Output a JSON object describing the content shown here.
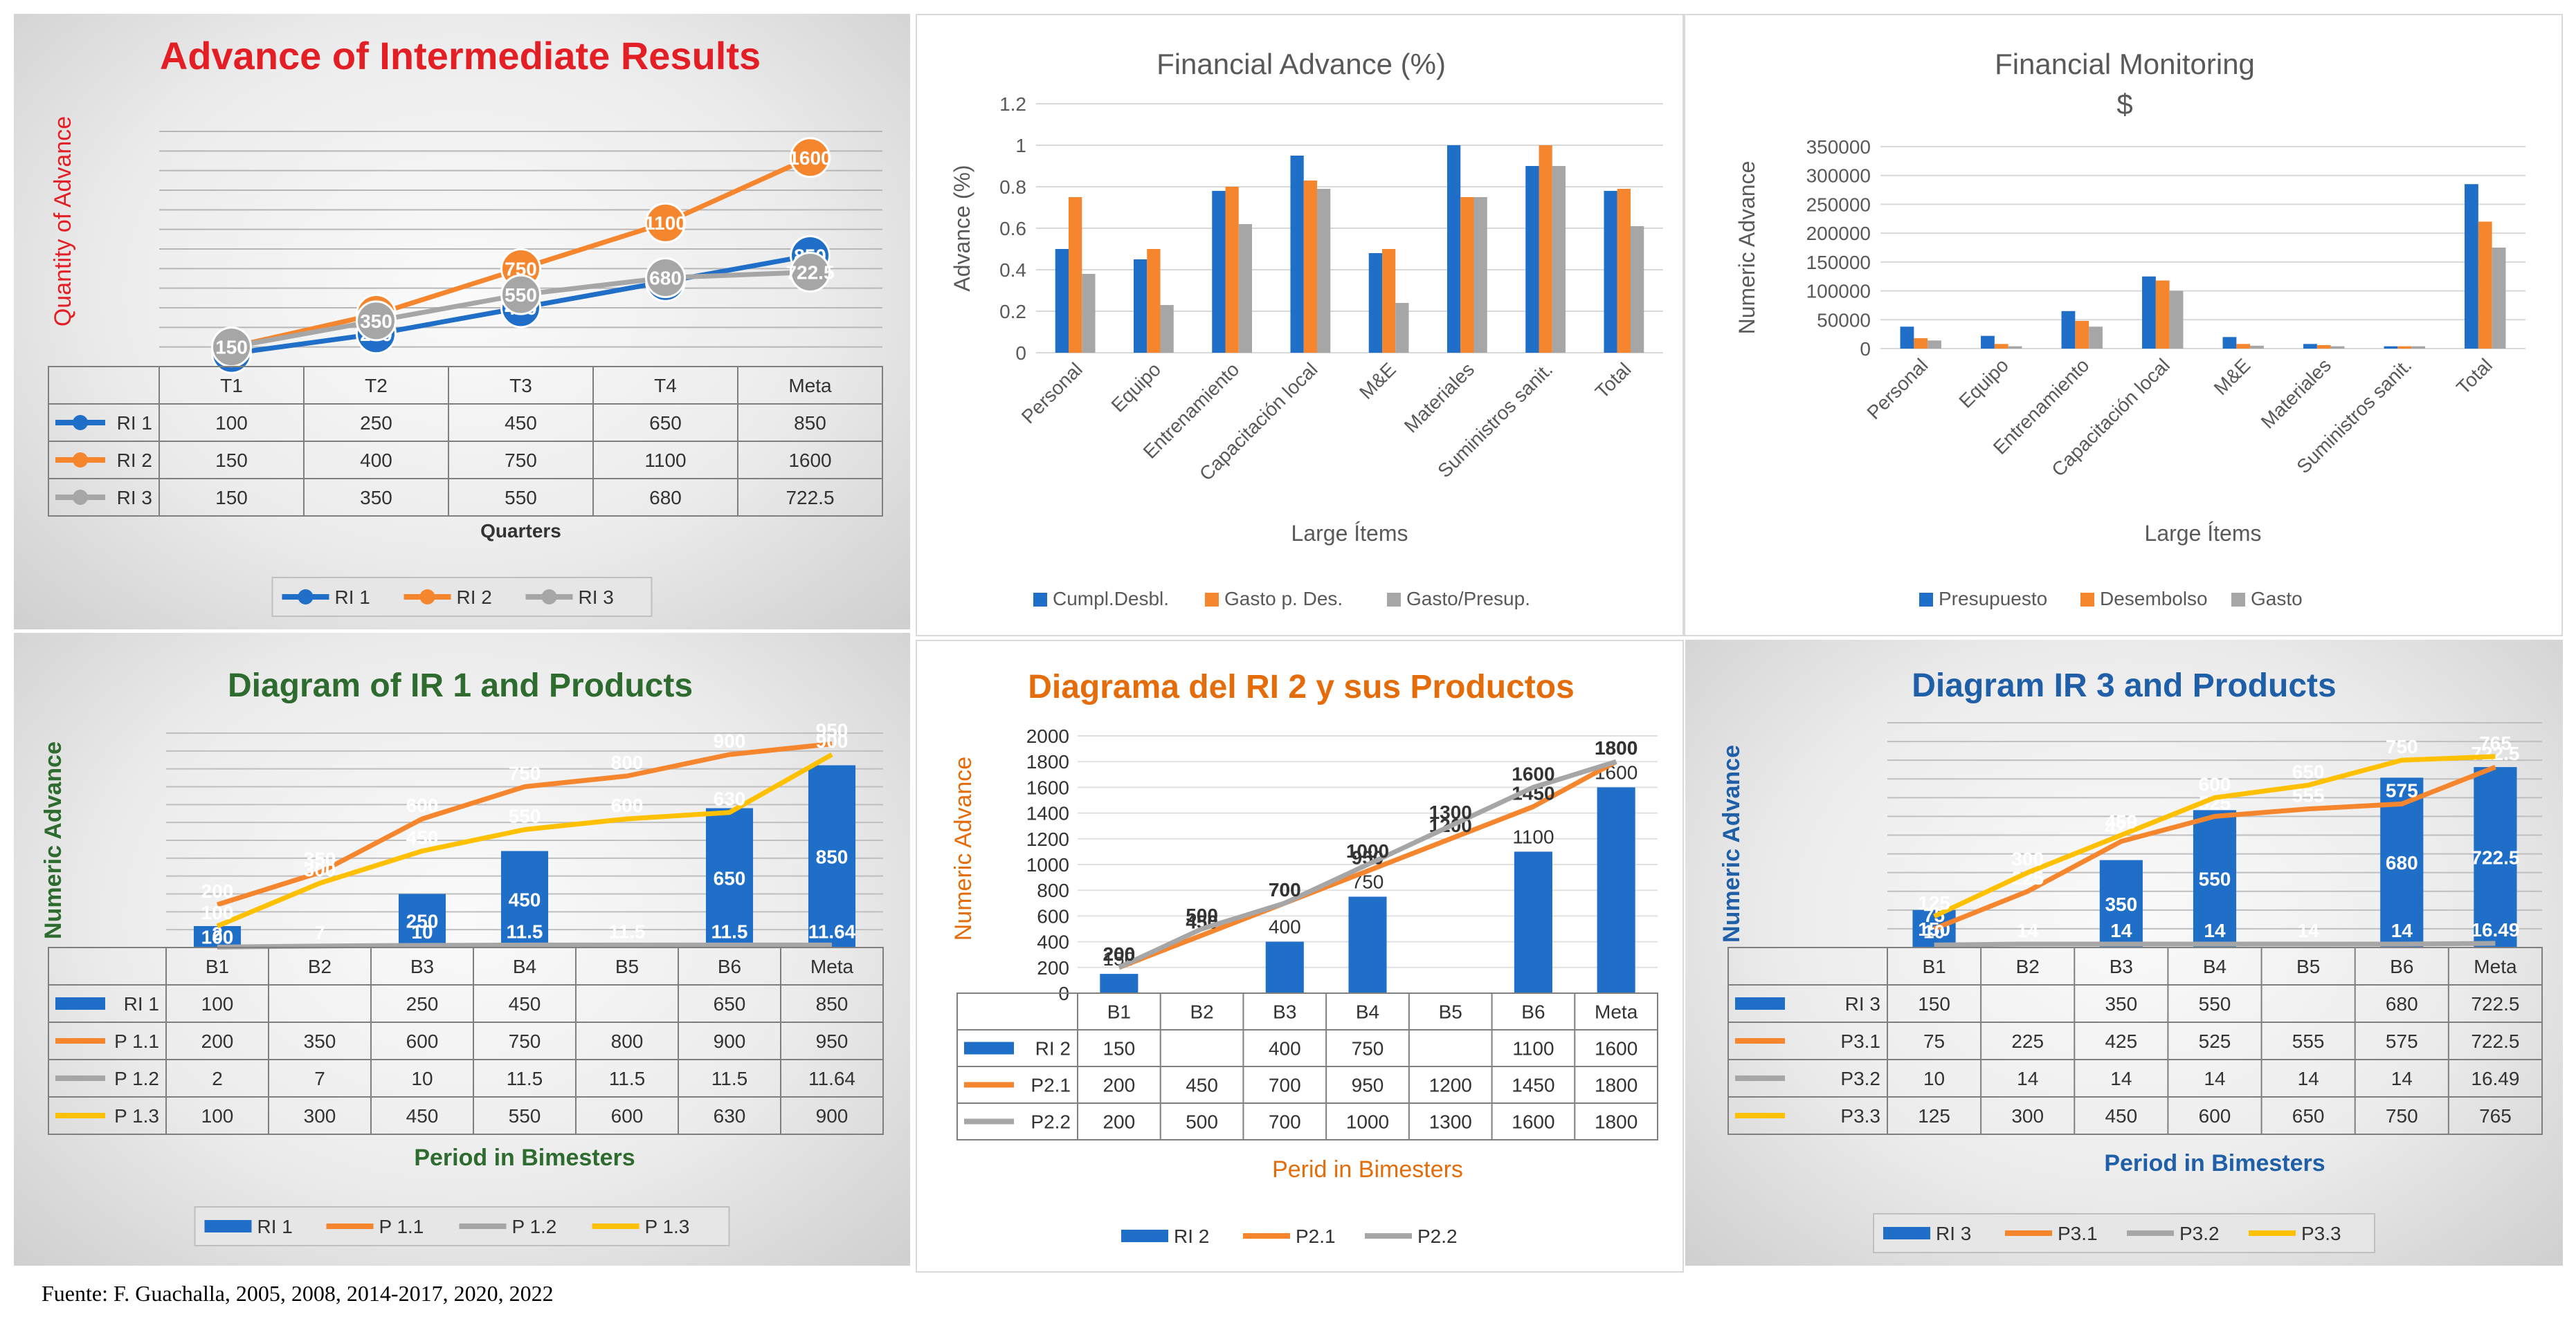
{
  "source_note": "Fuente: F. Guachalla, 2005, 2008, 2014-2017, 2020, 2022",
  "chart_data": [
    {
      "id": "p1",
      "type": "line",
      "title": "Advance of Intermediate Results",
      "xlabel": "Quarters",
      "ylabel": "Quantity of Advance",
      "categories": [
        "T1",
        "T2",
        "T3",
        "T4",
        "Meta"
      ],
      "ylim": [
        0,
        1800
      ],
      "series": [
        {
          "name": "RI 1",
          "type": "line",
          "color": "#1f6fc9",
          "values": [
            100,
            250,
            450,
            650,
            850
          ]
        },
        {
          "name": "RI 2",
          "type": "line",
          "color": "#f5862e",
          "values": [
            150,
            400,
            750,
            1100,
            1600
          ]
        },
        {
          "name": "RI 3",
          "type": "line",
          "color": "#a6a6a6",
          "values": [
            150,
            350,
            550,
            680,
            722.5
          ]
        }
      ],
      "table_values": [
        [
          "100",
          "250",
          "450",
          "650",
          "850"
        ],
        [
          "150",
          "400",
          "750",
          "1100",
          "1600"
        ],
        [
          "150",
          "350",
          "550",
          "680",
          "722.5"
        ]
      ],
      "colors": {
        "title": "#e31e24",
        "axis_label": "#e31e24",
        "xlabel": "#333333"
      }
    },
    {
      "id": "p2",
      "type": "bar",
      "title": "Financial Advance (%)",
      "xlabel": "Large Ítems",
      "ylabel": "Advance (%)",
      "categories": [
        "Personal",
        "Equipo",
        "Entrenamiento",
        "Capacitación local",
        "M&E",
        "Materiales",
        "Suministros sanit.",
        "Total"
      ],
      "ylim": [
        0,
        1.2
      ],
      "yticks": [
        "0",
        "0.2",
        "0.4",
        "0.6",
        "0.8",
        "1",
        "1.2"
      ],
      "series": [
        {
          "name": "Cumpl.Desbl.",
          "color": "#1f6fc9",
          "values": [
            0.5,
            0.45,
            0.78,
            0.95,
            0.48,
            1.0,
            0.9,
            0.78
          ]
        },
        {
          "name": "Gasto p. Des.",
          "color": "#f5862e",
          "values": [
            0.75,
            0.5,
            0.8,
            0.83,
            0.5,
            0.75,
            1.0,
            0.79
          ]
        },
        {
          "name": "Gasto/Presup.",
          "color": "#a6a6a6",
          "values": [
            0.38,
            0.23,
            0.62,
            0.79,
            0.24,
            0.75,
            0.9,
            0.61
          ]
        }
      ],
      "colors": {
        "title": "#595959"
      }
    },
    {
      "id": "p3",
      "type": "bar",
      "title": "Financial Monitoring",
      "subtitle": "$",
      "xlabel": "Large Ítems",
      "ylabel": "Numeric Advance",
      "categories": [
        "Personal",
        "Equipo",
        "Entrenamiento",
        "Capacitación local",
        "M&E",
        "Materiales",
        "Suministros sanit.",
        "Total"
      ],
      "ylim": [
        0,
        350000
      ],
      "yticks": [
        "0",
        "50000",
        "100000",
        "150000",
        "200000",
        "250000",
        "300000",
        "350000"
      ],
      "series": [
        {
          "name": "Presupuesto",
          "color": "#1f6fc9",
          "values": [
            38000,
            22000,
            65000,
            125000,
            20000,
            8000,
            4000,
            285000
          ]
        },
        {
          "name": "Desembolso",
          "color": "#f5862e",
          "values": [
            18000,
            8000,
            48000,
            118000,
            8000,
            6000,
            4000,
            220000
          ]
        },
        {
          "name": "Gasto",
          "color": "#a6a6a6",
          "values": [
            14000,
            4000,
            38000,
            100000,
            5000,
            4000,
            4000,
            175000
          ]
        }
      ],
      "colors": {
        "title": "#595959"
      }
    },
    {
      "id": "p4",
      "type": "combo",
      "title": "Diagram of IR 1 and Products",
      "xlabel": "Period in Bimesters",
      "ylabel": "Numeric Advance",
      "categories": [
        "B1",
        "B2",
        "B3",
        "B4",
        "B5",
        "B6",
        "Meta"
      ],
      "ylim": [
        0,
        1000
      ],
      "series": [
        {
          "name": "RI 1",
          "type": "bar",
          "color": "#1f6fc9",
          "values": [
            100,
            null,
            250,
            450,
            null,
            650,
            850
          ]
        },
        {
          "name": "P 1.1",
          "type": "line",
          "color": "#f5862e",
          "values": [
            200,
            350,
            600,
            750,
            800,
            900,
            950
          ]
        },
        {
          "name": "P 1.2",
          "type": "line",
          "color": "#a6a6a6",
          "values": [
            2,
            7,
            10,
            11.5,
            11.5,
            11.5,
            11.64
          ]
        },
        {
          "name": "P 1.3",
          "type": "line",
          "color": "#ffc000",
          "values": [
            100,
            300,
            450,
            550,
            600,
            630,
            900
          ]
        }
      ],
      "table_values": [
        [
          "100",
          "",
          "250",
          "450",
          "",
          "650",
          "850"
        ],
        [
          "200",
          "350",
          "600",
          "750",
          "800",
          "900",
          "950"
        ],
        [
          "2",
          "7",
          "10",
          "11.5",
          "11.5",
          "11.5",
          "11.64"
        ],
        [
          "100",
          "300",
          "450",
          "550",
          "600",
          "630",
          "900"
        ]
      ],
      "colors": {
        "title": "#2e6b2e",
        "axis_label": "#2e6b2e",
        "xlabel": "#2e6b2e"
      }
    },
    {
      "id": "p5",
      "type": "combo",
      "title": "Diagrama del RI 2 y sus Productos",
      "xlabel": "Perid in Bimesters",
      "ylabel": "Numeric Advance",
      "categories": [
        "B1",
        "B2",
        "B3",
        "B4",
        "B5",
        "B6",
        "Meta"
      ],
      "ylim": [
        0,
        2000
      ],
      "yticks": [
        "0",
        "200",
        "400",
        "600",
        "800",
        "1000",
        "1200",
        "1400",
        "1600",
        "1800",
        "2000"
      ],
      "series": [
        {
          "name": "RI 2",
          "type": "bar",
          "color": "#1f6fc9",
          "values": [
            150,
            null,
            400,
            750,
            null,
            1100,
            1600
          ]
        },
        {
          "name": "P2.1",
          "type": "line",
          "color": "#f5862e",
          "values": [
            200,
            450,
            700,
            950,
            1200,
            1450,
            1800
          ]
        },
        {
          "name": "P2.2",
          "type": "line",
          "color": "#a6a6a6",
          "values": [
            200,
            500,
            700,
            1000,
            1300,
            1600,
            1800
          ]
        }
      ],
      "table_values": [
        [
          "150",
          "",
          "400",
          "750",
          "",
          "1100",
          "1600"
        ],
        [
          "200",
          "450",
          "700",
          "950",
          "1200",
          "1450",
          "1800"
        ],
        [
          "200",
          "500",
          "700",
          "1000",
          "1300",
          "1600",
          "1800"
        ]
      ],
      "colors": {
        "title": "#e46c0a",
        "axis_label": "#e46c0a",
        "xlabel": "#e46c0a"
      }
    },
    {
      "id": "p6",
      "type": "combo",
      "title": "Diagram IR 3 and Products",
      "xlabel": "Period in Bimesters",
      "ylabel": "Numeric Advance",
      "categories": [
        "B1",
        "B2",
        "B3",
        "B4",
        "B5",
        "B6",
        "Meta"
      ],
      "ylim": [
        0,
        900
      ],
      "series": [
        {
          "name": "RI 3",
          "type": "bar",
          "color": "#1f6fc9",
          "values": [
            150,
            null,
            350,
            550,
            null,
            680,
            722.5
          ]
        },
        {
          "name": "P3.1",
          "type": "line",
          "color": "#f5862e",
          "values": [
            75,
            225,
            425,
            525,
            555,
            575,
            722.5
          ]
        },
        {
          "name": "P3.2",
          "type": "line",
          "color": "#a6a6a6",
          "values": [
            10,
            14,
            14,
            14,
            14,
            14,
            16.49
          ]
        },
        {
          "name": "P3.3",
          "type": "line",
          "color": "#ffc000",
          "values": [
            125,
            300,
            450,
            600,
            650,
            750,
            765
          ]
        }
      ],
      "table_values": [
        [
          "150",
          "",
          "350",
          "550",
          "",
          "680",
          "722.5"
        ],
        [
          "75",
          "225",
          "425",
          "525",
          "555",
          "575",
          "722.5"
        ],
        [
          "10",
          "14",
          "14",
          "14",
          "14",
          "14",
          "16.49"
        ],
        [
          "125",
          "300",
          "450",
          "600",
          "650",
          "750",
          "765"
        ]
      ],
      "colors": {
        "title": "#1f5fa8",
        "axis_label": "#1f5fa8",
        "xlabel": "#1f5fa8"
      }
    }
  ]
}
